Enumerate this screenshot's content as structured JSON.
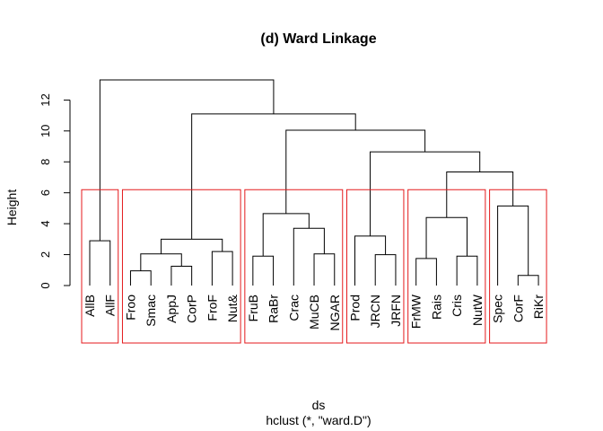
{
  "chart_data": {
    "type": "dendrogram",
    "title": "(d) Ward Linkage",
    "ylabel": "Height",
    "xlabel": "ds",
    "sublabel": "hclust (*, \"ward.D\")",
    "ylim": [
      0,
      13.3
    ],
    "yticks": [
      0,
      2,
      4,
      6,
      8,
      10,
      12
    ],
    "leaves": [
      "AllB",
      "AllF",
      "Froo",
      "Smac",
      "AppJ",
      "CorP",
      "FroF",
      "Nut&",
      "FruB",
      "RaBr",
      "Crac",
      "MuCB",
      "NGAR",
      "Prod",
      "JRCN",
      "JRFN",
      "FrMW",
      "Rais",
      "Cris",
      "NutW",
      "Spec",
      "CorF",
      "RiKr"
    ],
    "merges": [
      {
        "a": "L0",
        "b": "L1",
        "height": 2.9
      },
      {
        "a": "L2",
        "b": "L3",
        "height": 0.95
      },
      {
        "a": "L4",
        "b": "L5",
        "height": 1.25
      },
      {
        "a": "M1",
        "b": "M2",
        "height": 2.05
      },
      {
        "a": "L6",
        "b": "L7",
        "height": 2.2
      },
      {
        "a": "M3",
        "b": "M4",
        "height": 3.0
      },
      {
        "a": "L8",
        "b": "L9",
        "height": 1.9
      },
      {
        "a": "L11",
        "b": "L12",
        "height": 2.05
      },
      {
        "a": "L10",
        "b": "M7",
        "height": 3.7
      },
      {
        "a": "M6",
        "b": "M8",
        "height": 4.65
      },
      {
        "a": "L14",
        "b": "L15",
        "height": 2.0
      },
      {
        "a": "L13",
        "b": "M10",
        "height": 3.2
      },
      {
        "a": "L16",
        "b": "L17",
        "height": 1.75
      },
      {
        "a": "L18",
        "b": "L19",
        "height": 1.9
      },
      {
        "a": "M12",
        "b": "M13",
        "height": 4.4
      },
      {
        "a": "L21",
        "b": "L22",
        "height": 0.65
      },
      {
        "a": "L20",
        "b": "M15",
        "height": 5.15
      },
      {
        "a": "M14",
        "b": "M16",
        "height": 7.35
      },
      {
        "a": "M11",
        "b": "M17",
        "height": 8.65
      },
      {
        "a": "M9",
        "b": "M18",
        "height": 10.05
      },
      {
        "a": "M5",
        "b": "M19",
        "height": 11.1
      },
      {
        "a": "M0",
        "b": "M20",
        "height": 13.3
      }
    ],
    "cluster_boxes": [
      {
        "from": 0,
        "to": 1
      },
      {
        "from": 2,
        "to": 7
      },
      {
        "from": 8,
        "to": 12
      },
      {
        "from": 13,
        "to": 15
      },
      {
        "from": 16,
        "to": 19
      },
      {
        "from": 20,
        "to": 22
      }
    ],
    "box_top_height": 6.2,
    "box_color": "#e41a1c",
    "line_color": "#000000"
  }
}
